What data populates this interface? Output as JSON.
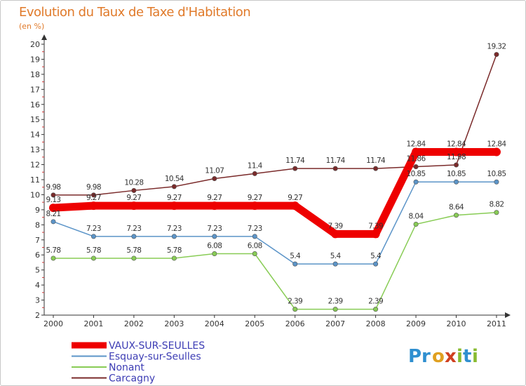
{
  "title": "Evolution du Taux de Taxe d'Habitation",
  "unit": "(en %)",
  "logo": {
    "letters": [
      "P",
      "r",
      "o",
      "x",
      "i",
      "t",
      "i"
    ],
    "colors": [
      "#2f8fd0",
      "#2f8fd0",
      "#e0a020",
      "#d04020",
      "#88bb30",
      "#2f8fd0",
      "#88bb30"
    ]
  },
  "chart_data": {
    "type": "line",
    "x": [
      "2000",
      "2001",
      "2002",
      "2003",
      "2004",
      "2005",
      "2006",
      "2007",
      "2008",
      "2009",
      "2010",
      "2011"
    ],
    "yticks": [
      "2",
      "3",
      "4",
      "5",
      "6",
      "7",
      "8",
      "9",
      "10",
      "11",
      "12",
      "13",
      "14",
      "15",
      "16",
      "17",
      "18",
      "19",
      "20"
    ],
    "ylim": [
      2,
      20
    ],
    "grid": false,
    "legend_position": "bottom-left",
    "series": [
      {
        "name": "VAUX-SUR-SEULLES",
        "color": "#ee0000",
        "values": [
          9.13,
          9.27,
          9.27,
          9.27,
          9.27,
          9.27,
          9.27,
          7.39,
          7.39,
          12.84,
          12.84,
          12.84
        ],
        "labels": [
          "9.13",
          "9.27",
          "9.27",
          "9.27",
          "9.27",
          "9.27",
          "9.27",
          "7.39",
          "7.39",
          "12.84",
          "12.84",
          "12.84"
        ]
      },
      {
        "name": "Esquay-sur-Seulles",
        "color": "#5b94c8",
        "values": [
          8.21,
          7.23,
          7.23,
          7.23,
          7.23,
          7.23,
          5.4,
          5.4,
          5.4,
          10.85,
          10.85,
          10.85
        ],
        "labels": [
          "8.21",
          "7.23",
          "7.23",
          "7.23",
          "7.23",
          "7.23",
          "5.4",
          "5.4",
          "5.4",
          "10.85",
          "10.85",
          "10.85"
        ]
      },
      {
        "name": "Nonant",
        "color": "#88cc55",
        "values": [
          5.78,
          5.78,
          5.78,
          5.78,
          6.08,
          6.08,
          2.39,
          2.39,
          2.39,
          8.04,
          8.64,
          8.82
        ],
        "labels": [
          "5.78",
          "5.78",
          "5.78",
          "5.78",
          "6.08",
          "6.08",
          "2.39",
          "2.39",
          "2.39",
          "8.04",
          "8.64",
          "8.82"
        ]
      },
      {
        "name": "Carcagny",
        "color": "#7a2a2a",
        "values": [
          9.98,
          9.98,
          10.28,
          10.54,
          11.07,
          11.4,
          11.74,
          11.74,
          11.74,
          11.86,
          11.98,
          19.32
        ],
        "labels": [
          "9.98",
          "9.98",
          "10.28",
          "10.54",
          "11.07",
          "11.4",
          "11.74",
          "11.74",
          "11.74",
          "11.86",
          "11.98",
          "19.32"
        ]
      }
    ]
  }
}
